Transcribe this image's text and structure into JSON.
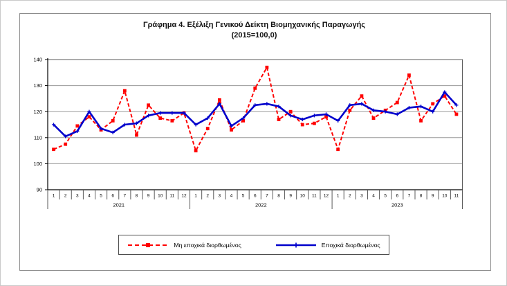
{
  "title": {
    "line1": "Γράφημα 4. Εξέλιξη Γενικού Δείκτη Βιομηχανικής Παραγωγής",
    "line2": "(2015=100,0)"
  },
  "legend": {
    "nsa_label": "Μη εποχικά διορθωμένος",
    "sa_label": "Εποχικά διορθωμένος"
  },
  "colors": {
    "red": "#FF0000",
    "blue": "#0000CC",
    "grid": "#999999",
    "axis": "#000000",
    "frame": "#8c8c8c"
  },
  "chart_data": {
    "type": "line",
    "title": "Γράφημα 4. Εξέλιξη Γενικού Δείκτη Βιομηχανικής Παραγωγής (2015=100,0)",
    "ylim": [
      90,
      140
    ],
    "yticks": [
      90,
      100,
      110,
      120,
      130,
      140
    ],
    "grid": true,
    "legend_position": "bottom",
    "x_months": [
      "1",
      "2",
      "3",
      "4",
      "5",
      "6",
      "7",
      "8",
      "9",
      "10",
      "11",
      "12",
      "1",
      "2",
      "3",
      "4",
      "5",
      "6",
      "7",
      "8",
      "9",
      "10",
      "11",
      "12",
      "1",
      "2",
      "3",
      "4",
      "5",
      "6",
      "7",
      "8",
      "9",
      "10",
      "11"
    ],
    "year_groups": [
      {
        "label": "2021",
        "count": 12
      },
      {
        "label": "2022",
        "count": 12
      },
      {
        "label": "2023",
        "count": 11
      }
    ],
    "series": [
      {
        "name": "Μη εποχικά διορθωμένος",
        "color": "#FF0000",
        "style": "dashed-square-marker",
        "values": [
          105.5,
          107.5,
          114.5,
          118,
          113,
          116.5,
          128,
          111,
          122.5,
          117.5,
          116.5,
          119.5,
          105,
          113.5,
          124.5,
          113,
          116.5,
          129,
          137,
          117,
          120,
          115,
          115.5,
          118,
          105.5,
          120.5,
          126,
          117.5,
          120.5,
          123.5,
          134,
          116.5,
          123,
          126,
          119
        ]
      },
      {
        "name": "Εποχικά διορθωμένος",
        "color": "#0000CC",
        "style": "solid-plus-marker",
        "values": [
          115,
          110.5,
          112.5,
          120,
          113.5,
          112,
          115,
          115.5,
          118.5,
          119.5,
          119.5,
          119.5,
          115,
          117.5,
          123,
          114.5,
          117.5,
          122.5,
          123,
          122,
          118.5,
          117,
          118.5,
          119,
          116.5,
          122.5,
          123,
          120.5,
          120,
          119,
          121.5,
          122,
          120,
          127.5,
          122.5
        ]
      }
    ]
  }
}
